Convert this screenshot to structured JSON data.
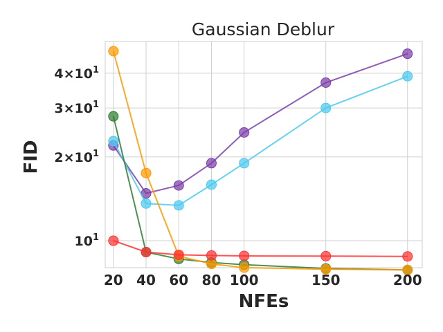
{
  "chart_data": {
    "type": "line",
    "title": "Gaussian Deblur",
    "xlabel": "NFEs",
    "ylabel": "FID",
    "yscale": "log",
    "x": [
      20,
      40,
      60,
      80,
      100,
      150,
      200
    ],
    "xticks": [
      "20",
      "40",
      "60",
      "80",
      "100",
      "150",
      "200"
    ],
    "yticks": [
      {
        "value": 10,
        "base": "10",
        "sup": "1",
        "coef": ""
      },
      {
        "value": 20,
        "base": "10",
        "sup": "1",
        "coef": "2×"
      },
      {
        "value": 30,
        "base": "10",
        "sup": "1",
        "coef": "3×"
      },
      {
        "value": 40,
        "base": "10",
        "sup": "1",
        "coef": "4×"
      }
    ],
    "xlim": [
      15,
      209
    ],
    "ylim": [
      8.0,
      52.0
    ],
    "grid": true,
    "series": [
      {
        "color": "#7b3fa8",
        "values": [
          22.0,
          14.8,
          15.8,
          19.0,
          24.5,
          37.0,
          47.0
        ]
      },
      {
        "color": "#4cc9f0",
        "values": [
          22.8,
          13.6,
          13.4,
          15.9,
          19.0,
          30.0,
          39.0
        ]
      },
      {
        "color": "#2e7d32",
        "values": [
          28.0,
          9.1,
          8.6,
          8.35,
          8.2,
          7.95,
          7.85
        ]
      },
      {
        "color": "#ff9900",
        "values": [
          48.0,
          17.5,
          8.8,
          8.25,
          8.0,
          7.9,
          7.85
        ]
      },
      {
        "color": "#ff3333",
        "values": [
          10.0,
          9.1,
          8.9,
          8.85,
          8.82,
          8.8,
          8.78
        ]
      }
    ]
  }
}
